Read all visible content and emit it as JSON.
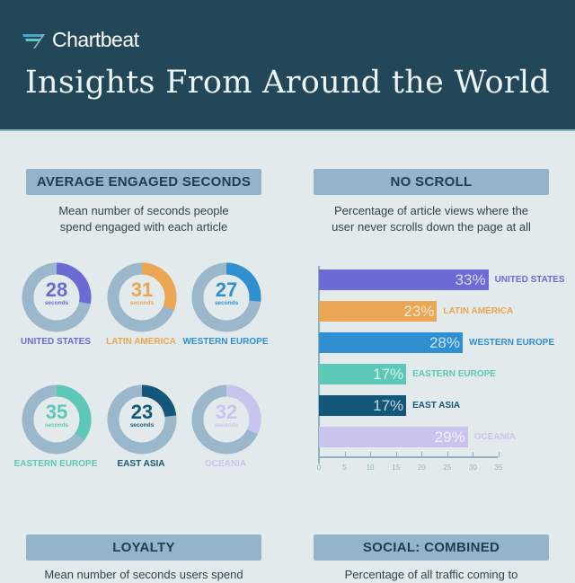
{
  "header": {
    "brand": "Chartbeat",
    "title": "Insights From Around the World"
  },
  "sections": {
    "engaged": {
      "heading": "AVERAGE ENGAGED SECONDS",
      "subtitle_line1": "Mean number of seconds people",
      "subtitle_line2": "spend engaged with each article",
      "unit": "seconds",
      "items": [
        {
          "region": "UNITED STATES",
          "value": "28",
          "color": "#6b6bd6"
        },
        {
          "region": "LATIN AMERICA",
          "value": "31",
          "color": "#eba653"
        },
        {
          "region": "WESTERN EUROPE",
          "value": "27",
          "color": "#2f8fd1"
        },
        {
          "region": "EASTERN EUROPE",
          "value": "35",
          "color": "#5cc8b8"
        },
        {
          "region": "EAST ASIA",
          "value": "23",
          "color": "#13577a"
        },
        {
          "region": "OCEANIA",
          "value": "32",
          "color": "#c7c5ee"
        }
      ]
    },
    "noscroll": {
      "heading": "NO SCROLL",
      "subtitle_line1": "Percentage of article views where the",
      "subtitle_line2": "user never scrolls down the page at all",
      "items": [
        {
          "region": "UNITED STATES",
          "value": "33%",
          "color": "#6b6bd6"
        },
        {
          "region": "LATIN AMERICA",
          "value": "23%",
          "color": "#eba653"
        },
        {
          "region": "WESTERN EUROPE",
          "value": "28%",
          "color": "#2f8fd1"
        },
        {
          "region": "EASTERN EUROPE",
          "value": "17%",
          "color": "#5cc8b8"
        },
        {
          "region": "EAST ASIA",
          "value": "17%",
          "color": "#13577a"
        },
        {
          "region": "OCEANIA",
          "value": "29%",
          "color": "#c7c5ee"
        }
      ],
      "ticks": [
        "0",
        "5",
        "10",
        "15",
        "20",
        "25",
        "30",
        "35"
      ]
    },
    "loyalty": {
      "heading": "LOYALTY",
      "subtitle_line1": "Mean number of seconds users spend"
    },
    "social": {
      "heading": "SOCIAL: COMBINED",
      "subtitle_line1": "Percentage of all traffic coming to"
    }
  },
  "chart_data": [
    {
      "type": "pie",
      "title": "AVERAGE ENGAGED SECONDS",
      "subtitle": "Mean number of seconds people spend engaged with each article",
      "categories": [
        "United States",
        "Latin America",
        "Western Europe",
        "Eastern Europe",
        "East Asia",
        "Oceania"
      ],
      "values": [
        28,
        31,
        27,
        35,
        23,
        32
      ],
      "unit": "seconds"
    },
    {
      "type": "bar",
      "title": "NO SCROLL",
      "subtitle": "Percentage of article views where the user never scrolls down the page at all",
      "orientation": "horizontal",
      "categories": [
        "United States",
        "Latin America",
        "Western Europe",
        "Eastern Europe",
        "East Asia",
        "Oceania"
      ],
      "values": [
        33,
        23,
        28,
        17,
        17,
        29
      ],
      "xlabel": "",
      "ylabel": "",
      "xlim": [
        0,
        35
      ],
      "xticks": [
        0,
        5,
        10,
        15,
        20,
        25,
        30,
        35
      ],
      "grid": false
    }
  ]
}
